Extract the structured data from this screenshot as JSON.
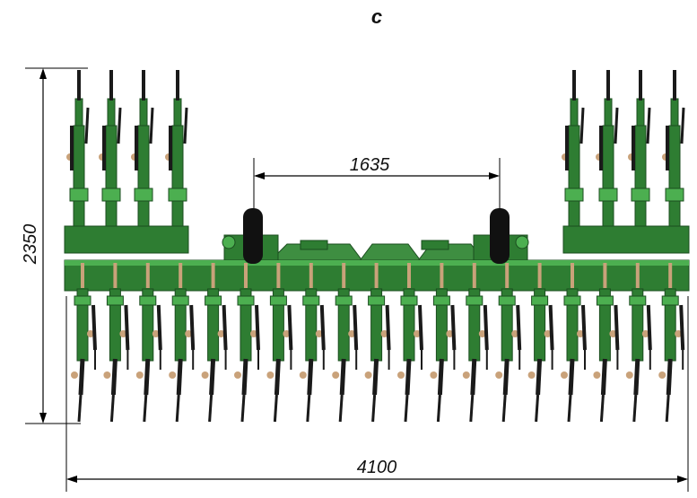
{
  "figure": {
    "label": "c",
    "dimensions": {
      "height": "2350",
      "total_width": "4100",
      "wheel_track": "1635"
    }
  },
  "colors": {
    "frame_green": "#2e7d32",
    "frame_dark": "#1b4d1f",
    "frame_light": "#4caf50",
    "tine": "#1a1a1a",
    "tire": "#111111",
    "bolt": "#c9a27a",
    "dimension_line": "#000000"
  }
}
